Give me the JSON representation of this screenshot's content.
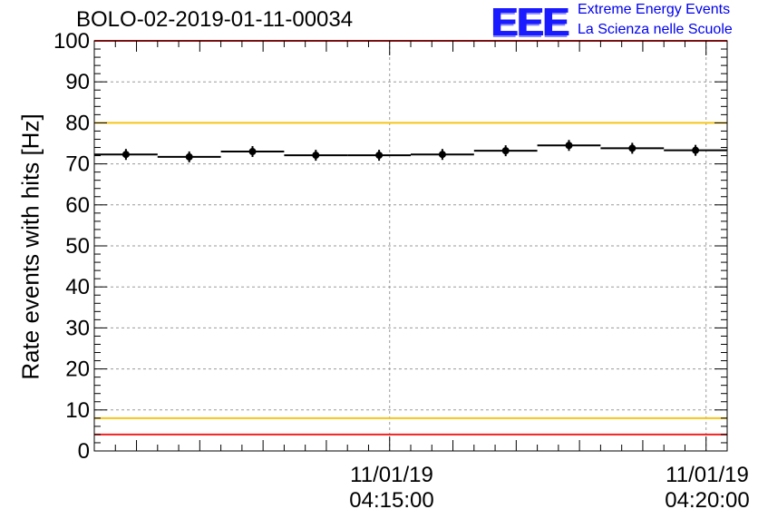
{
  "chart_data": {
    "type": "scatter",
    "title": "BOLO-02-2019-01-11-00034",
    "ylabel": "Rate events with hits [Hz]",
    "xlabel": "",
    "ylim": [
      0,
      100
    ],
    "yticks": [
      0,
      10,
      20,
      30,
      40,
      50,
      60,
      70,
      80,
      90,
      100
    ],
    "x_ticks": [
      {
        "date": "11/01/19",
        "time": "04:15:00"
      },
      {
        "date": "11/01/19",
        "time": "04:20:00"
      }
    ],
    "x_tick_times": [
      "04:15:00",
      "04:20:00"
    ],
    "x_range_time": [
      "04:10:20",
      "04:20:20"
    ],
    "grid": true,
    "bin_width_seconds": 60,
    "points": [
      {
        "time": "04:10:50",
        "y": 72.3
      },
      {
        "time": "04:11:50",
        "y": 71.7
      },
      {
        "time": "04:12:50",
        "y": 73.0
      },
      {
        "time": "04:13:50",
        "y": 72.1
      },
      {
        "time": "04:14:50",
        "y": 72.1
      },
      {
        "time": "04:15:50",
        "y": 72.3
      },
      {
        "time": "04:16:50",
        "y": 73.2
      },
      {
        "time": "04:17:50",
        "y": 74.5
      },
      {
        "time": "04:18:50",
        "y": 73.8
      },
      {
        "time": "04:19:50",
        "y": 73.3
      }
    ],
    "reference_lines": [
      {
        "y": 80,
        "color": "#f5c518"
      },
      {
        "y": 8,
        "color": "#f5c518"
      },
      {
        "y": 100,
        "color": "#ee2222"
      },
      {
        "y": 4,
        "color": "#ee2222"
      }
    ]
  },
  "logo": {
    "text": "EEE",
    "line1": "Extreme Energy Events",
    "line2": "La Scienza nelle Scuole",
    "color": "#1a1aff"
  }
}
